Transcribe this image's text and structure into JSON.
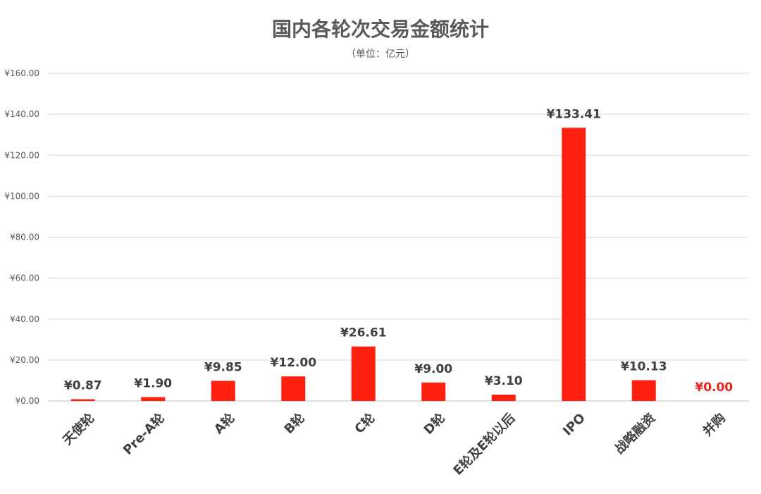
{
  "title": "国内各轮次交易金额统计",
  "subtitle": "（单位：亿元）",
  "chart_data": {
    "type": "bar",
    "title": "国内各轮次交易金额统计",
    "subtitle": "（单位：亿元）",
    "categories": [
      "天使轮",
      "Pre-A轮",
      "A轮",
      "B轮",
      "C轮",
      "D轮",
      "E轮及E轮以后",
      "IPO",
      "战略融资",
      "并购"
    ],
    "values": [
      0.87,
      1.9,
      9.85,
      12.0,
      26.61,
      9.0,
      3.1,
      133.41,
      10.13,
      0.0
    ],
    "value_labels": [
      "¥0.87",
      "¥1.90",
      "¥9.85",
      "¥12.00",
      "¥26.61",
      "¥9.00",
      "¥3.10",
      "¥133.41",
      "¥10.13",
      "¥0.00"
    ],
    "yticks": [
      0,
      20,
      40,
      60,
      80,
      100,
      120,
      140,
      160
    ],
    "ytick_labels": [
      "¥0.00",
      "¥20.00",
      "¥40.00",
      "¥60.00",
      "¥80.00",
      "¥100.00",
      "¥120.00",
      "¥140.00",
      "¥160.00"
    ],
    "ylim": [
      0,
      160
    ],
    "grid": true,
    "bar_color": "#ff2010",
    "zero_label_color": "#e8231b",
    "xlabel": "",
    "ylabel": ""
  }
}
